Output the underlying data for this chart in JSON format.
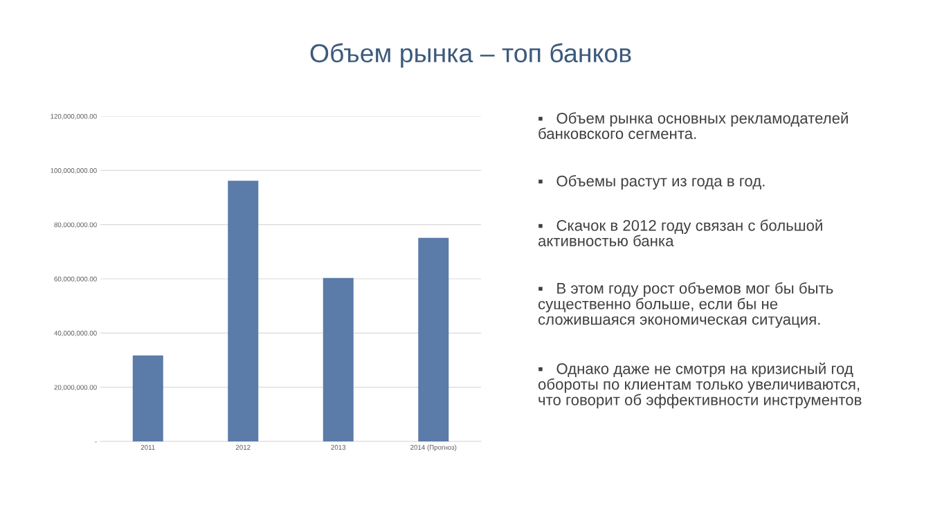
{
  "chart_data": {
    "type": "bar",
    "title": "Объем рынка – топ банков",
    "categories": [
      "2011",
      "2012",
      "2013",
      "2014 (Прогноз)"
    ],
    "values": [
      31700000,
      96200000,
      60300000,
      75100000
    ],
    "color": "#5b7ba8",
    "ylim": [
      0,
      120000000
    ],
    "yticks": [
      {
        "value": 0,
        "label": "-"
      },
      {
        "value": 20000000,
        "label": "20,000,000.00"
      },
      {
        "value": 40000000,
        "label": "40,000,000.00"
      },
      {
        "value": 60000000,
        "label": "60,000,000.00"
      },
      {
        "value": 80000000,
        "label": "80,000,000.00"
      },
      {
        "value": 100000000,
        "label": "100,000,000.00"
      },
      {
        "value": 120000000,
        "label": "120,000,000.00"
      }
    ],
    "grid": "y",
    "annotations": [
      "▪   Объем рынка основных рекламодателей банковского сегмента.",
      "▪   Объемы растут из года в год.",
      "▪   Скачок в 2012 году связан с большой активностью банка",
      "▪   В этом году рост объемов мог бы быть существенно больше, если бы не сложившаяся экономическая ситуация.",
      "▪   Однако даже не смотря на кризисный год обороты по клиентам только увеличиваются, что говорит об эффективности инструментов"
    ]
  }
}
